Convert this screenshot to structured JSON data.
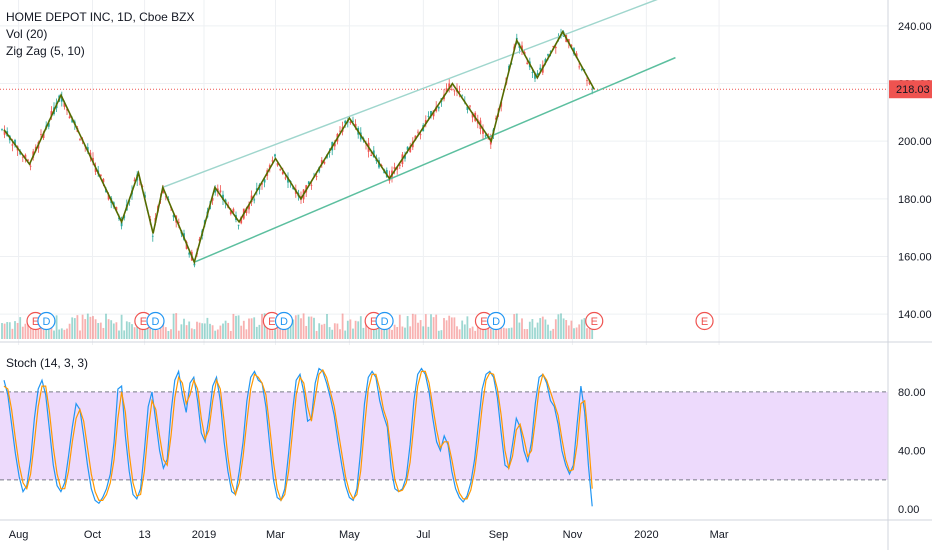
{
  "legend": {
    "symbol": "HOME DEPOT INC, 1D, Cboe BZX",
    "volume": "Vol (20)",
    "zigzag": "Zig Zag (5, 10)",
    "stoch": "Stoch (14, 3, 3)"
  },
  "colors": {
    "up": "#26a69a",
    "down": "#ef5350",
    "zigzag": "#556b00",
    "channel_upper": "#9fd6cd",
    "channel_lower": "#5cbf9f",
    "price_line": "#ef5350",
    "stoch_k": "#2196f3",
    "stoch_d": "#ff9800",
    "stoch_band": "#e7cdfb"
  },
  "chart_data": [
    {
      "type": "candlestick",
      "y_ticks": [
        140,
        160,
        180,
        200,
        220,
        240
      ],
      "y_tick_labels": [
        "140.00",
        "160.00",
        "180.00",
        "200.00",
        "220.00",
        "240.00"
      ],
      "ylim": [
        131,
        249
      ],
      "x_tick_labels": [
        "Aug",
        "Oct",
        "13",
        "2019",
        "Mar",
        "May",
        "Jul",
        "Sep",
        "Nov",
        "2020",
        "Mar"
      ],
      "last_price": 218.03,
      "last_price_label": "218.03",
      "zigzag_points": [
        {
          "date": "2018-07-20",
          "price": 204
        },
        {
          "date": "2018-08-10",
          "price": 192
        },
        {
          "date": "2018-09-05",
          "price": 216
        },
        {
          "date": "2018-10-25",
          "price": 172
        },
        {
          "date": "2018-11-08",
          "price": 189
        },
        {
          "date": "2018-11-20",
          "price": 168
        },
        {
          "date": "2018-11-28",
          "price": 184
        },
        {
          "date": "2018-12-24",
          "price": 158
        },
        {
          "date": "2019-01-10",
          "price": 184
        },
        {
          "date": "2019-01-30",
          "price": 172
        },
        {
          "date": "2019-03-01",
          "price": 194
        },
        {
          "date": "2019-03-22",
          "price": 180
        },
        {
          "date": "2019-05-01",
          "price": 208
        },
        {
          "date": "2019-06-03",
          "price": 187
        },
        {
          "date": "2019-07-25",
          "price": 220
        },
        {
          "date": "2019-08-26",
          "price": 200
        },
        {
          "date": "2019-09-16",
          "price": 235
        },
        {
          "date": "2019-10-03",
          "price": 222
        },
        {
          "date": "2019-10-24",
          "price": 238
        },
        {
          "date": "2019-11-19",
          "price": 218
        }
      ],
      "channel_upper": [
        {
          "date": "2018-11-28",
          "price": 184
        },
        {
          "date": "2020-01-15",
          "price": 250
        }
      ],
      "channel_lower": [
        {
          "date": "2018-12-24",
          "price": 158
        },
        {
          "date": "2020-01-25",
          "price": 229
        }
      ],
      "events": [
        {
          "date": "2018-08-15",
          "label": "E"
        },
        {
          "date": "2018-08-24",
          "label": "D"
        },
        {
          "date": "2018-11-12",
          "label": "E"
        },
        {
          "date": "2018-11-22",
          "label": "D"
        },
        {
          "date": "2019-02-26",
          "label": "E"
        },
        {
          "date": "2019-03-08",
          "label": "D"
        },
        {
          "date": "2019-05-21",
          "label": "E"
        },
        {
          "date": "2019-05-30",
          "label": "D"
        },
        {
          "date": "2019-08-20",
          "label": "E"
        },
        {
          "date": "2019-08-30",
          "label": "D"
        },
        {
          "date": "2019-11-19",
          "label": "E"
        },
        {
          "date": "2020-02-18",
          "label": "E"
        }
      ]
    },
    {
      "type": "line",
      "title": "Stoch (14, 3, 3)",
      "y_ticks": [
        0,
        40,
        80
      ],
      "y_tick_labels": [
        "0.00",
        "40.00",
        "80.00"
      ],
      "ylim": [
        -6,
        112
      ],
      "band": [
        20,
        80
      ],
      "series": [
        {
          "name": "%K",
          "values": [
            88,
            78,
            58,
            38,
            22,
            12,
            16,
            34,
            62,
            82,
            88,
            78,
            54,
            30,
            16,
            12,
            18,
            36,
            56,
            72,
            68,
            50,
            30,
            14,
            6,
            4,
            8,
            14,
            24,
            46,
            82,
            84,
            50,
            26,
            10,
            7,
            14,
            40,
            70,
            80,
            60,
            40,
            28,
            34,
            66,
            88,
            94,
            78,
            66,
            86,
            90,
            74,
            52,
            46,
            62,
            84,
            90,
            74,
            46,
            26,
            12,
            10,
            26,
            46,
            74,
            90,
            94,
            88,
            86,
            70,
            44,
            20,
            8,
            6,
            14,
            38,
            66,
            88,
            92,
            80,
            60,
            62,
            86,
            96,
            94,
            86,
            76,
            64,
            46,
            30,
            16,
            8,
            6,
            14,
            40,
            72,
            90,
            94,
            90,
            74,
            64,
            56,
            28,
            14,
            12,
            14,
            22,
            44,
            74,
            92,
            96,
            92,
            80,
            62,
            46,
            40,
            50,
            44,
            26,
            14,
            8,
            5,
            9,
            18,
            34,
            58,
            82,
            92,
            94,
            90,
            76,
            52,
            30,
            28,
            44,
            62,
            56,
            40,
            32,
            46,
            72,
            90,
            92,
            86,
            74,
            70,
            58,
            40,
            30,
            24,
            30,
            58,
            84,
            66,
            30,
            2
          ]
        },
        {
          "name": "%D",
          "values": [
            84,
            82,
            68,
            48,
            30,
            18,
            14,
            24,
            46,
            70,
            84,
            84,
            66,
            42,
            24,
            14,
            14,
            26,
            46,
            62,
            68,
            60,
            42,
            24,
            12,
            6,
            6,
            10,
            18,
            34,
            62,
            80,
            66,
            38,
            18,
            9,
            10,
            26,
            54,
            74,
            68,
            50,
            34,
            30,
            50,
            76,
            90,
            86,
            72,
            78,
            88,
            82,
            62,
            48,
            54,
            74,
            88,
            82,
            60,
            36,
            18,
            10,
            18,
            36,
            60,
            82,
            92,
            90,
            86,
            78,
            56,
            32,
            14,
            6,
            10,
            26,
            52,
            78,
            90,
            86,
            70,
            60,
            76,
            92,
            95,
            90,
            80,
            70,
            54,
            38,
            22,
            12,
            7,
            10,
            26,
            56,
            82,
            92,
            92,
            82,
            68,
            60,
            40,
            20,
            12,
            13,
            18,
            32,
            58,
            84,
            94,
            94,
            86,
            70,
            54,
            42,
            46,
            46,
            34,
            20,
            11,
            7,
            7,
            13,
            26,
            46,
            70,
            88,
            93,
            92,
            82,
            64,
            40,
            28,
            36,
            54,
            58,
            48,
            36,
            40,
            60,
            82,
            92,
            88,
            80,
            72,
            64,
            48,
            34,
            26,
            27,
            44,
            72,
            74,
            48,
            14
          ]
        }
      ]
    }
  ]
}
